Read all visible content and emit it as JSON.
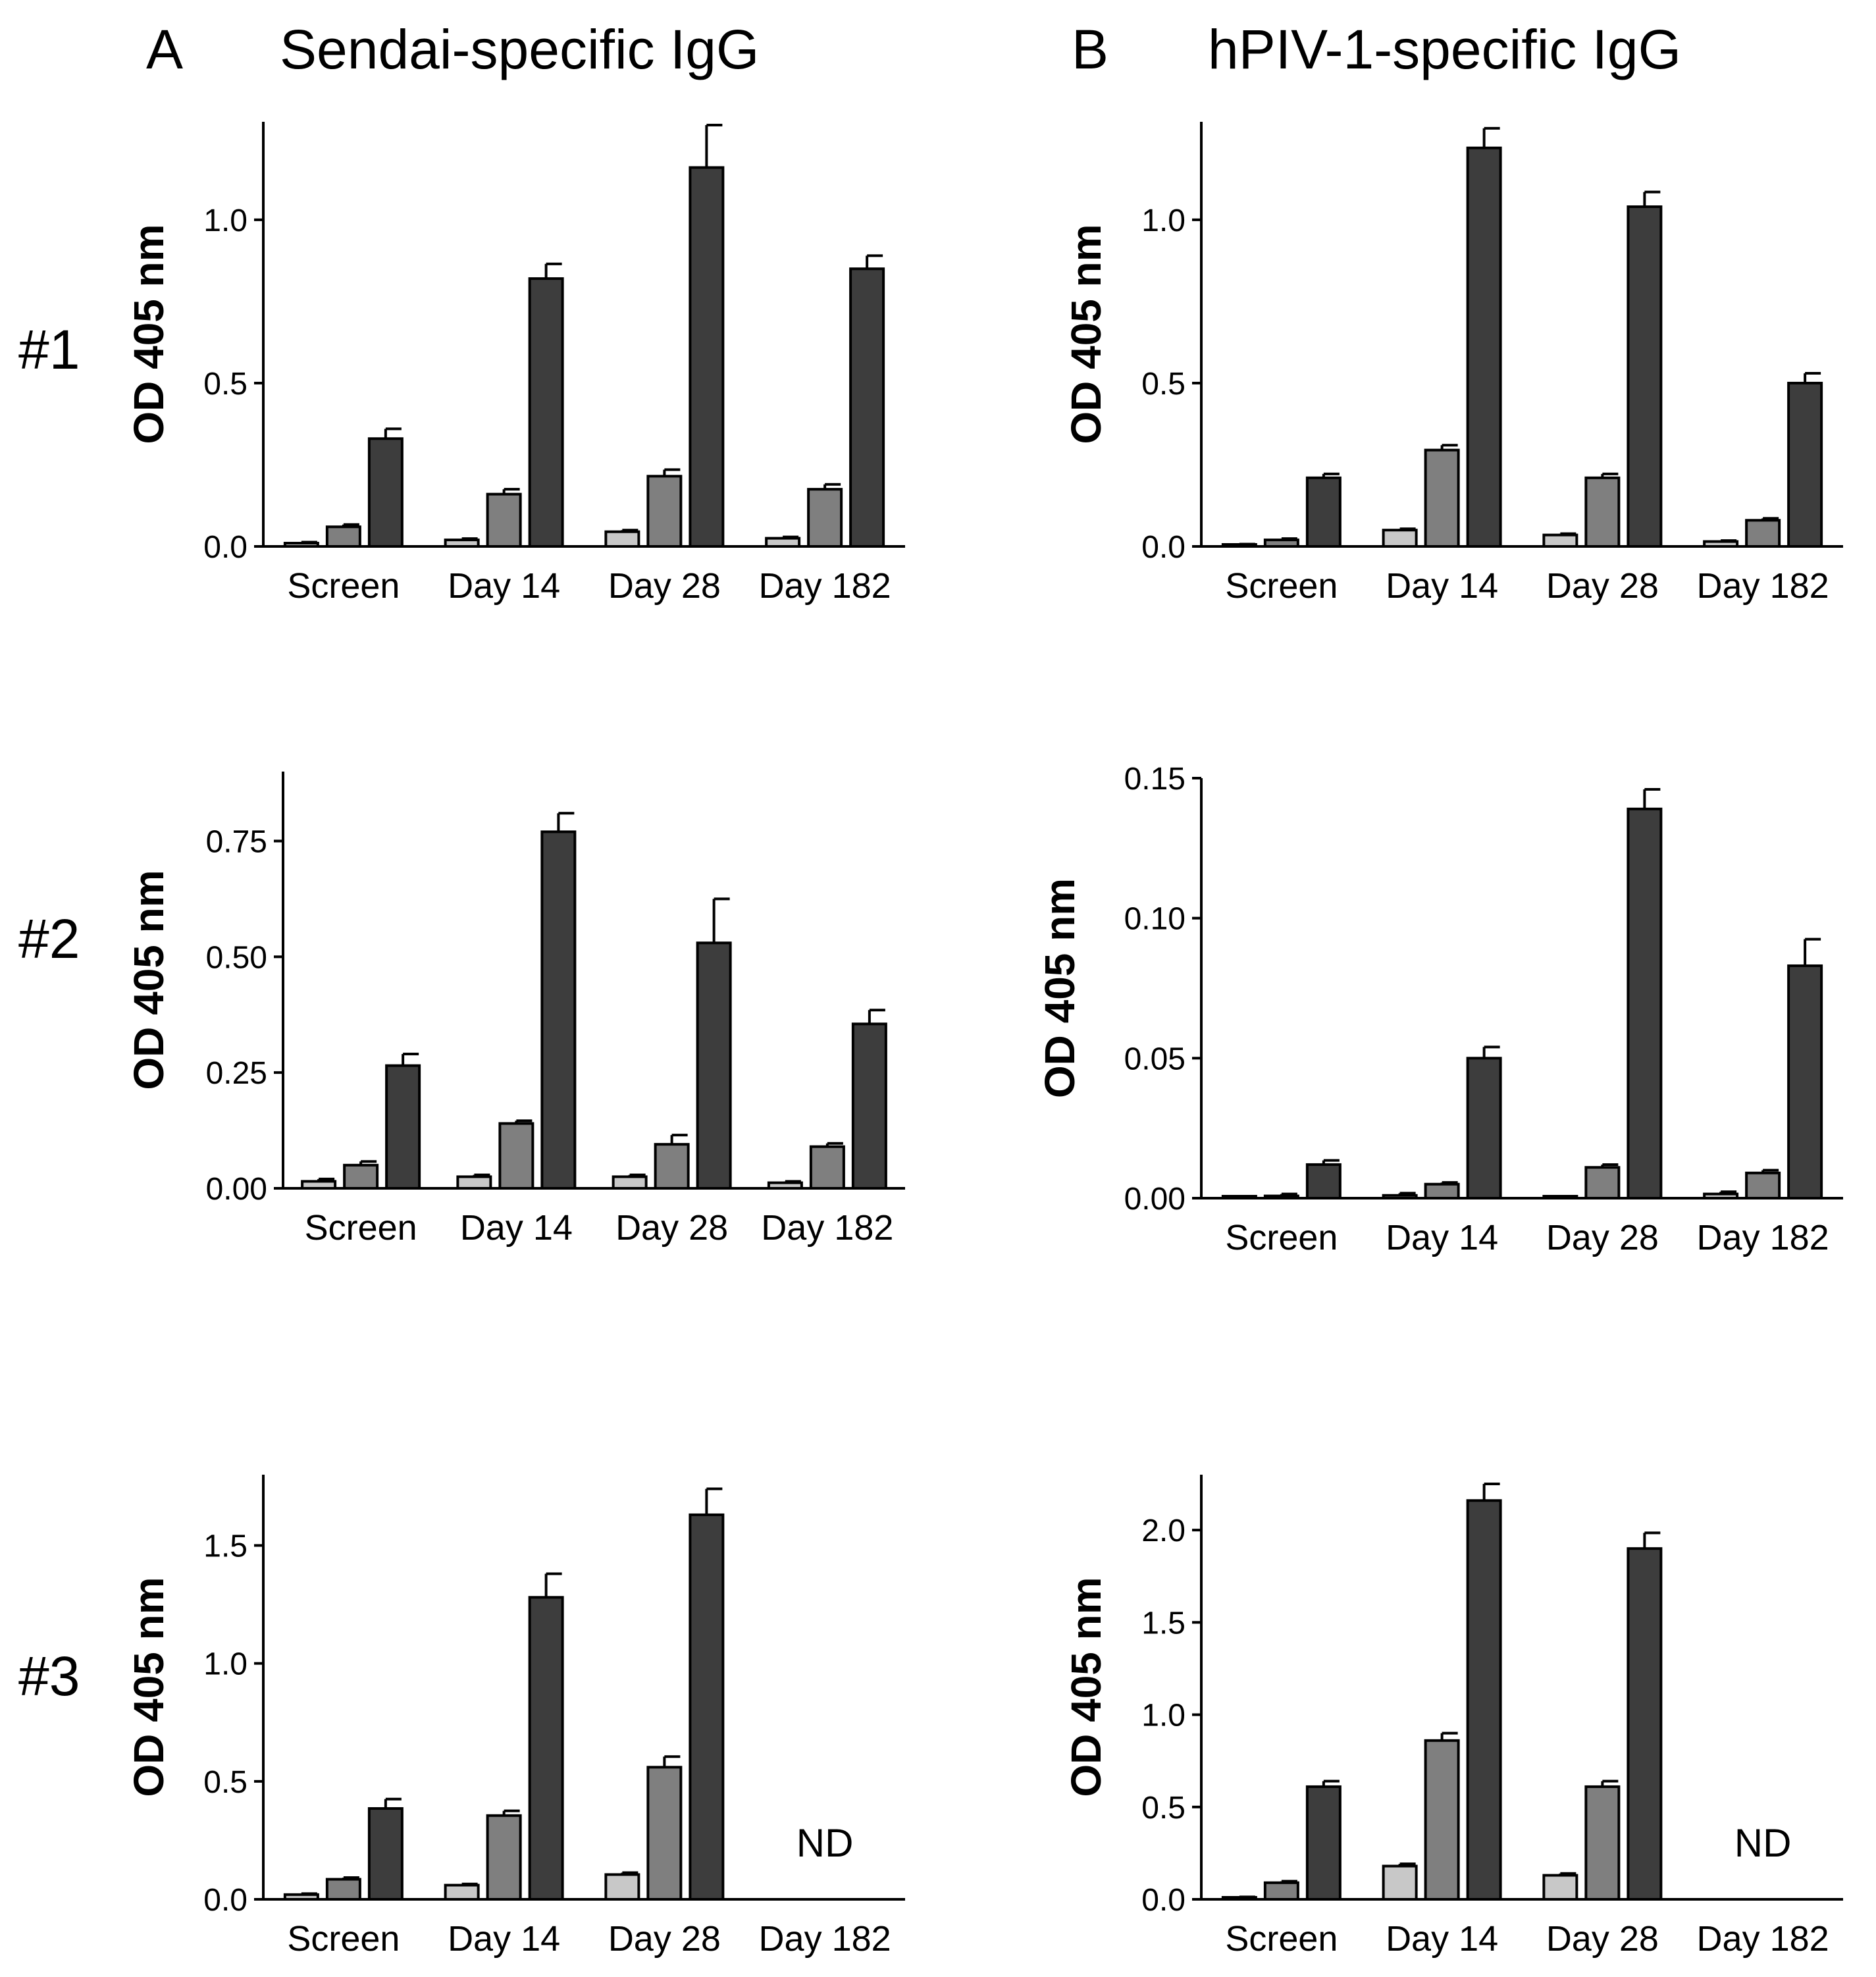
{
  "figure": {
    "column_titles": [
      {
        "letter": "A",
        "title": "Sendai-specific IgG"
      },
      {
        "letter": "B",
        "title": "hPIV-1-specific IgG"
      }
    ],
    "row_labels": [
      "#1",
      "#2",
      "#3"
    ],
    "series_colors": [
      "#c8c8c8",
      "#7f7f7f",
      "#3d3d3d"
    ]
  },
  "chart_data": [
    {
      "type": "bar",
      "column": "A",
      "row": "#1",
      "title": "Sendai-specific IgG",
      "ylabel": "OD 405 nm",
      "xlabel": "",
      "categories": [
        "Screen",
        "Day 14",
        "Day 28",
        "Day 182"
      ],
      "ylim": [
        0,
        1.3
      ],
      "yticks": [
        0.0,
        0.5,
        1.0
      ],
      "ytick_labels": [
        "0.0",
        "0.5",
        "1.0"
      ],
      "series": [
        {
          "name": "series 1",
          "values": [
            0.01,
            0.02,
            0.045,
            0.025
          ],
          "errors": [
            0.003,
            0.004,
            0.005,
            0.004
          ]
        },
        {
          "name": "series 2",
          "values": [
            0.06,
            0.16,
            0.215,
            0.175
          ],
          "errors": [
            0.007,
            0.015,
            0.02,
            0.015
          ]
        },
        {
          "name": "series 3",
          "values": [
            0.33,
            0.82,
            1.16,
            0.85
          ],
          "errors": [
            0.03,
            0.045,
            0.13,
            0.04
          ]
        }
      ],
      "annotations": []
    },
    {
      "type": "bar",
      "column": "B",
      "row": "#1",
      "title": "hPIV-1-specific IgG",
      "ylabel": "OD 405 nm",
      "xlabel": "",
      "categories": [
        "Screen",
        "Day 14",
        "Day 28",
        "Day 182"
      ],
      "ylim": [
        0,
        1.3
      ],
      "yticks": [
        0.0,
        0.5,
        1.0
      ],
      "ytick_labels": [
        "0.0",
        "0.5",
        "1.0"
      ],
      "series": [
        {
          "name": "series 1",
          "values": [
            0.005,
            0.05,
            0.035,
            0.015
          ],
          "errors": [
            0.002,
            0.004,
            0.004,
            0.003
          ]
        },
        {
          "name": "series 2",
          "values": [
            0.02,
            0.295,
            0.21,
            0.08
          ],
          "errors": [
            0.004,
            0.015,
            0.012,
            0.006
          ]
        },
        {
          "name": "series 3",
          "values": [
            0.21,
            1.22,
            1.04,
            0.5
          ],
          "errors": [
            0.012,
            0.06,
            0.045,
            0.03
          ]
        }
      ],
      "annotations": []
    },
    {
      "type": "bar",
      "column": "A",
      "row": "#2",
      "title": "Sendai-specific IgG",
      "ylabel": "OD 405 nm",
      "xlabel": "",
      "categories": [
        "Screen",
        "Day 14",
        "Day 28",
        "Day 182"
      ],
      "ylim": [
        0,
        0.9
      ],
      "yticks": [
        0.0,
        0.25,
        0.5,
        0.75
      ],
      "ytick_labels": [
        "0.00",
        "0.25",
        "0.50",
        "0.75"
      ],
      "series": [
        {
          "name": "series 1",
          "values": [
            0.015,
            0.025,
            0.025,
            0.012
          ],
          "errors": [
            0.005,
            0.004,
            0.004,
            0.003
          ]
        },
        {
          "name": "series 2",
          "values": [
            0.05,
            0.14,
            0.095,
            0.09
          ],
          "errors": [
            0.008,
            0.006,
            0.02,
            0.007
          ]
        },
        {
          "name": "series 3",
          "values": [
            0.265,
            0.77,
            0.53,
            0.355
          ],
          "errors": [
            0.025,
            0.04,
            0.095,
            0.03
          ]
        }
      ],
      "annotations": []
    },
    {
      "type": "bar",
      "column": "B",
      "row": "#2",
      "title": "hPIV-1-specific IgG",
      "ylabel": "OD 405 nm",
      "xlabel": "",
      "categories": [
        "Screen",
        "Day 14",
        "Day 28",
        "Day 182"
      ],
      "ylim": [
        0,
        0.15
      ],
      "yticks": [
        0.0,
        0.05,
        0.1,
        0.15
      ],
      "ytick_labels": [
        "0.00",
        "0.05",
        "0.10",
        "0.15"
      ],
      "series": [
        {
          "name": "series 1",
          "values": [
            0.0003,
            0.001,
            0.0002,
            0.0015
          ],
          "errors": [
            0.0003,
            0.0008,
            0.0002,
            0.0008
          ]
        },
        {
          "name": "series 2",
          "values": [
            0.0008,
            0.005,
            0.011,
            0.009
          ],
          "errors": [
            0.0007,
            0.0006,
            0.001,
            0.001
          ]
        },
        {
          "name": "series 3",
          "values": [
            0.012,
            0.05,
            0.139,
            0.083
          ],
          "errors": [
            0.0015,
            0.004,
            0.007,
            0.0095
          ]
        }
      ],
      "annotations": []
    },
    {
      "type": "bar",
      "column": "A",
      "row": "#3",
      "title": "Sendai-specific IgG",
      "ylabel": "OD 405 nm",
      "xlabel": "",
      "categories": [
        "Screen",
        "Day 14",
        "Day 28",
        "Day 182"
      ],
      "ylim": [
        0,
        1.8
      ],
      "yticks": [
        0.0,
        0.5,
        1.0,
        1.5
      ],
      "ytick_labels": [
        "0.0",
        "0.5",
        "1.0",
        "1.5"
      ],
      "series": [
        {
          "name": "series 1",
          "values": [
            0.02,
            0.06,
            0.105,
            null
          ],
          "errors": [
            0.004,
            0.005,
            0.008,
            null
          ]
        },
        {
          "name": "series 2",
          "values": [
            0.085,
            0.355,
            0.56,
            null
          ],
          "errors": [
            0.007,
            0.02,
            0.045,
            null
          ]
        },
        {
          "name": "series 3",
          "values": [
            0.385,
            1.28,
            1.63,
            null
          ],
          "errors": [
            0.04,
            0.1,
            0.11,
            null
          ]
        }
      ],
      "annotations": [
        {
          "category": "Day 182",
          "text": "ND"
        }
      ]
    },
    {
      "type": "bar",
      "column": "B",
      "row": "#3",
      "title": "hPIV-1-specific IgG",
      "ylabel": "OD 405 nm",
      "xlabel": "",
      "categories": [
        "Screen",
        "Day 14",
        "Day 28",
        "Day 182"
      ],
      "ylim": [
        0,
        2.3
      ],
      "yticks": [
        0.0,
        0.5,
        1.0,
        1.5,
        2.0
      ],
      "ytick_labels": [
        "0.0",
        "0.5",
        "1.0",
        "1.5",
        "2.0"
      ],
      "series": [
        {
          "name": "series 1",
          "values": [
            0.01,
            0.18,
            0.13,
            null
          ],
          "errors": [
            0.003,
            0.012,
            0.01,
            null
          ]
        },
        {
          "name": "series 2",
          "values": [
            0.09,
            0.86,
            0.61,
            null
          ],
          "errors": [
            0.008,
            0.04,
            0.03,
            null
          ]
        },
        {
          "name": "series 3",
          "values": [
            0.61,
            2.16,
            1.9,
            null
          ],
          "errors": [
            0.03,
            0.09,
            0.085,
            null
          ]
        }
      ],
      "annotations": [
        {
          "category": "Day 182",
          "text": "ND"
        }
      ]
    }
  ]
}
